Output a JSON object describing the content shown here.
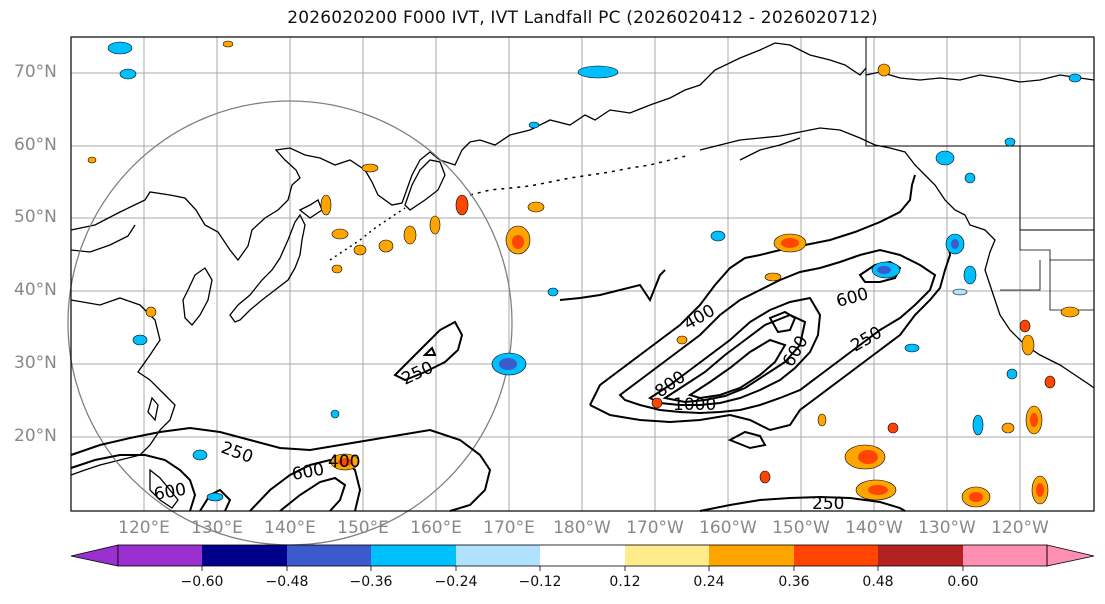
{
  "title": "2026020200 F000 IVT, IVT Landfall PC (2026020412 - 2026020712)",
  "latitude_labels": [
    "70°N",
    "60°N",
    "50°N",
    "40°N",
    "30°N",
    "20°N"
  ],
  "longitude_labels": [
    "120°E",
    "130°E",
    "140°E",
    "150°E",
    "160°E",
    "170°E",
    "180°W",
    "170°W",
    "160°W",
    "150°W",
    "140°W",
    "130°W",
    "120°W"
  ],
  "contour_labels": [
    "250",
    "400",
    "600",
    "800",
    "1000"
  ],
  "contour_label_instances": [
    {
      "value": "400",
      "context": "central-pacific"
    },
    {
      "value": "600",
      "context": "central-pacific-east"
    },
    {
      "value": "250",
      "context": "central-pacific-east"
    },
    {
      "value": "600",
      "context": "central-pacific-inner"
    },
    {
      "value": "800",
      "context": "central-pacific-core"
    },
    {
      "value": "1000",
      "context": "central-pacific-core"
    },
    {
      "value": "250",
      "context": "west-pacific"
    },
    {
      "value": "250",
      "context": "tropics-west"
    },
    {
      "value": "600",
      "context": "tropics-west"
    },
    {
      "value": "400",
      "context": "tropics-west"
    },
    {
      "value": "600",
      "context": "tropics-west-2"
    },
    {
      "value": "250",
      "context": "tropics-east"
    }
  ],
  "colorbar": {
    "ticks": [
      "−0.60",
      "−0.48",
      "−0.36",
      "−0.24",
      "−0.12",
      "0.12",
      "0.24",
      "0.36",
      "0.48",
      "0.60"
    ],
    "colors": [
      "#9b30d0",
      "#00008b",
      "#3a5acd",
      "#00bfff",
      "#b0e2ff",
      "#ffffff",
      "#ffeb8a",
      "#ffa500",
      "#ff4500",
      "#b22222",
      "#ff8fb0"
    ]
  },
  "colors": {
    "land_outline": "#000000",
    "grid": "#aaaaaa",
    "circle": "#808080",
    "contour": "#000000"
  }
}
